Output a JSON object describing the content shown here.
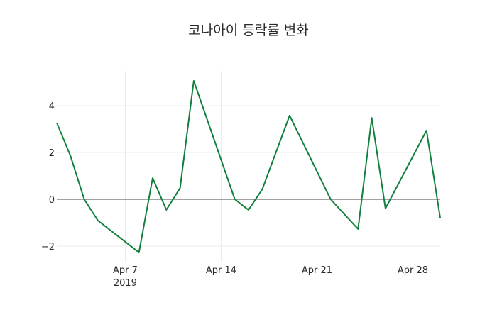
{
  "chart_data": {
    "type": "line",
    "title": "코나아이 등락률 변화",
    "xlabel": "",
    "ylabel": "",
    "x": [
      "2019-04-02",
      "2019-04-03",
      "2019-04-04",
      "2019-04-05",
      "2019-04-08",
      "2019-04-09",
      "2019-04-10",
      "2019-04-11",
      "2019-04-12",
      "2019-04-15",
      "2019-04-16",
      "2019-04-17",
      "2019-04-19",
      "2019-04-22",
      "2019-04-24",
      "2019-04-25",
      "2019-04-26",
      "2019-04-29",
      "2019-04-30"
    ],
    "series": [
      {
        "name": "등락률",
        "color": "#11803d",
        "values": [
          3.27,
          1.85,
          0,
          -0.91,
          -2.27,
          0.91,
          -0.45,
          0.48,
          5.06,
          0,
          -0.45,
          0.42,
          3.58,
          0,
          -1.27,
          3.48,
          -0.39,
          2.94,
          -0.79
        ]
      }
    ],
    "xlim": [
      "2019-04-02",
      "2019-04-30"
    ],
    "ylim": [
      -2.7,
      5.5
    ],
    "yticks": [
      -2,
      0,
      2,
      4
    ],
    "ytick_labels": [
      "−2",
      "0",
      "2",
      "4"
    ],
    "xticks": [
      "2019-04-07",
      "2019-04-14",
      "2019-04-21",
      "2019-04-28"
    ],
    "xtick_labels": [
      "Apr 7",
      "Apr 14",
      "Apr 21",
      "Apr 28"
    ],
    "xtick_sublabel": "2019",
    "grid": true,
    "zeroline": true
  }
}
